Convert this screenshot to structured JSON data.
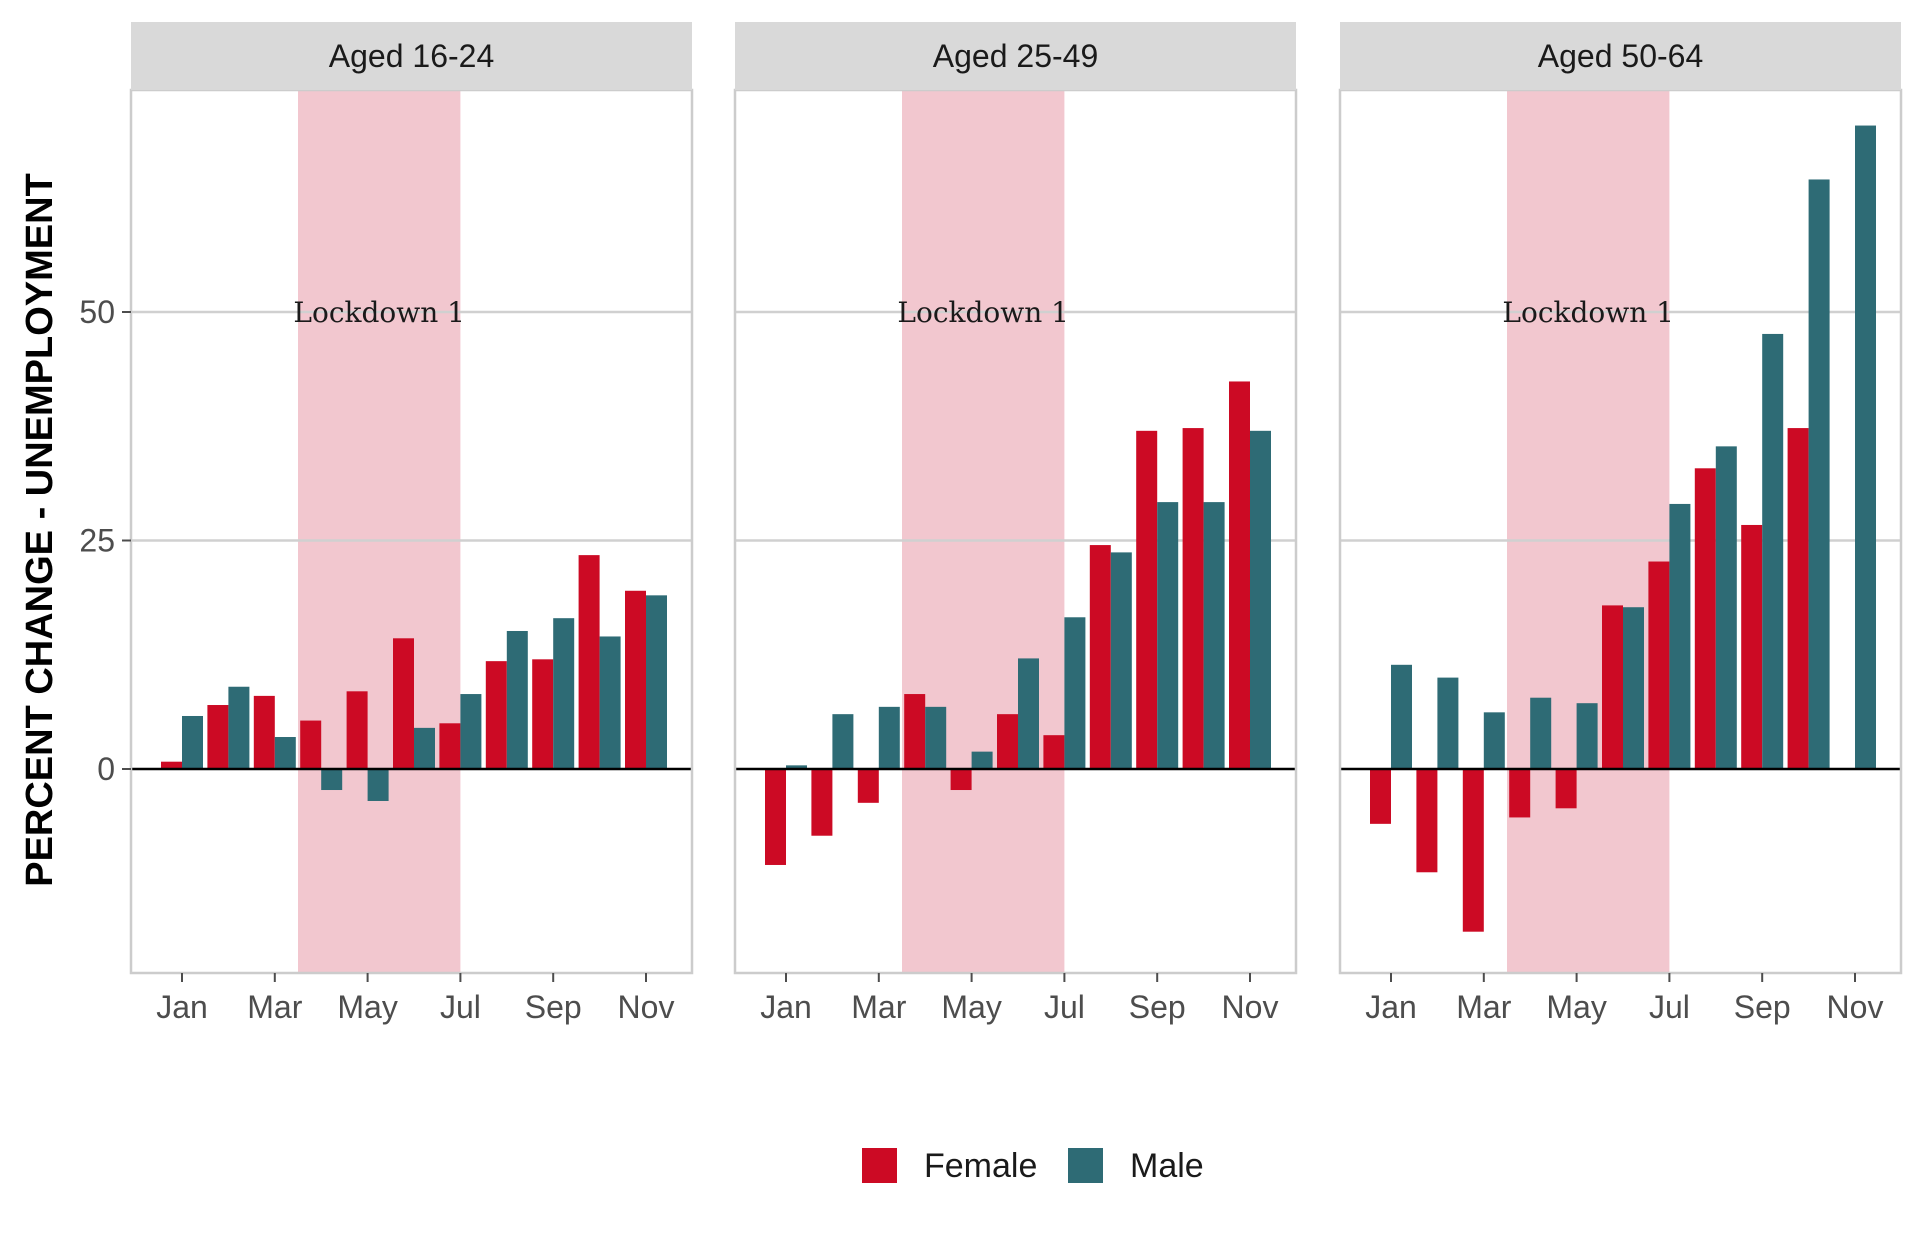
{
  "chart_data": {
    "type": "bar",
    "facet_by": "age group",
    "categories": [
      "Jan",
      "Feb",
      "Mar",
      "Apr",
      "May",
      "Jun",
      "Jul",
      "Aug",
      "Sep",
      "Oct",
      "Nov",
      "Dec"
    ],
    "x_tick_labels": [
      "Jan",
      "Mar",
      "May",
      "Jul",
      "Sep",
      "Nov"
    ],
    "ylabel": "PERCENT CHANGE - UNEMPLOYMENT",
    "y_ticks": [
      0,
      25,
      50
    ],
    "ylim": [
      -22,
      74
    ],
    "grid": true,
    "legend_position": "bottom",
    "colors": {
      "Female": "#cc0a24",
      "Male": "#2e6b75",
      "lockdown_shade": "#f2c7cf",
      "strip_bg": "#d9d9d9"
    },
    "annotation": {
      "text": "Lockdown 1",
      "x_range": [
        "Apr",
        "Jul"
      ],
      "y": 50
    },
    "legend": [
      "Female",
      "Male"
    ],
    "panels": [
      {
        "title": "Aged 16-24",
        "series": [
          {
            "name": "Female",
            "values": [
              0.8,
              7,
              8,
              5.3,
              8.5,
              14.3,
              5,
              11.8,
              12,
              23.4,
              19.5,
              null
            ]
          },
          {
            "name": "Male",
            "values": [
              5.8,
              9,
              3.5,
              -2.3,
              -3.5,
              4.5,
              8.2,
              15.1,
              16.5,
              14.5,
              19,
              null
            ]
          }
        ]
      },
      {
        "title": "Aged 25-49",
        "series": [
          {
            "name": "Female",
            "values": [
              -10.5,
              -7.3,
              -3.7,
              8.2,
              -2.3,
              6,
              3.7,
              24.5,
              37,
              37.3,
              42.4,
              null
            ]
          },
          {
            "name": "Male",
            "values": [
              0.4,
              6,
              6.8,
              6.8,
              1.9,
              12.1,
              16.6,
              23.7,
              29.2,
              29.2,
              37,
              null
            ]
          }
        ]
      },
      {
        "title": "Aged 50-64",
        "series": [
          {
            "name": "Female",
            "values": [
              -6,
              -11.3,
              -17.8,
              -5.3,
              -4.3,
              17.9,
              22.7,
              32.9,
              26.7,
              37.3,
              null,
              null
            ]
          },
          {
            "name": "Male",
            "values": [
              11.4,
              10,
              6.2,
              7.8,
              7.2,
              17.7,
              29,
              35.3,
              47.6,
              64.5,
              70.4,
              null
            ]
          }
        ]
      }
    ]
  }
}
